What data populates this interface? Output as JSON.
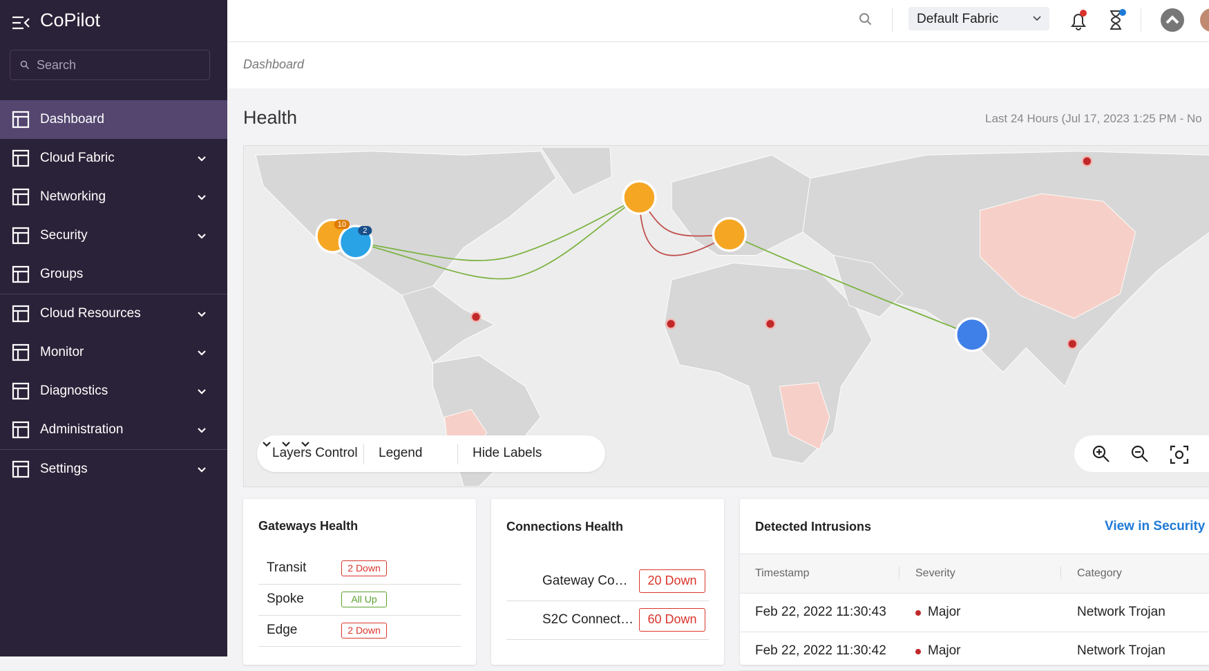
{
  "sidebar": {
    "brand": "CoPilot",
    "search_placeholder": "Search",
    "sections": [
      [
        {
          "label": "Dashboard",
          "active": true,
          "expandable": false
        },
        {
          "label": "Cloud Fabric",
          "active": false,
          "expandable": true
        },
        {
          "label": "Networking",
          "active": false,
          "expandable": true
        },
        {
          "label": "Security",
          "active": false,
          "expandable": true
        },
        {
          "label": "Groups",
          "active": false,
          "expandable": false
        }
      ],
      [
        {
          "label": "Cloud Resources",
          "active": false,
          "expandable": true
        },
        {
          "label": "Monitor",
          "active": false,
          "expandable": true
        },
        {
          "label": "Diagnostics",
          "active": false,
          "expandable": true
        },
        {
          "label": "Administration",
          "active": false,
          "expandable": true
        }
      ],
      [
        {
          "label": "Settings",
          "active": false,
          "expandable": true
        }
      ]
    ]
  },
  "topbar": {
    "fabric": "Default Fabric"
  },
  "breadcrumb": "Dashboard",
  "health": {
    "title": "Health",
    "time_range": "Last 24 Hours (Jul 17, 2023 1:25 PM - No",
    "map": {
      "badges": [
        "10",
        "2"
      ],
      "controls": [
        "Layers Control",
        "Legend",
        "Hide Labels"
      ]
    }
  },
  "gateways_health": {
    "title": "Gateways Health",
    "rows": [
      {
        "name": "Transit",
        "status": "2 Down",
        "color": "#d9342b"
      },
      {
        "name": "Spoke",
        "status": "All Up",
        "color": "#5aa02c"
      },
      {
        "name": "Edge",
        "status": "2 Down",
        "color": "#d9342b"
      }
    ]
  },
  "connections_health": {
    "title": "Connections Health",
    "rows": [
      {
        "name": "Gateway Co…",
        "status": "20 Down",
        "color": "#d9342b"
      },
      {
        "name": "S2C Connect…",
        "status": "60 Down",
        "color": "#d9342b"
      }
    ]
  },
  "detected_intrusions": {
    "title": "Detected Intrusions",
    "link": "View in Security",
    "columns": [
      "Timestamp",
      "Severity",
      "Category"
    ],
    "rows": [
      [
        "Feb 22, 2022 11:30:43",
        "Major",
        "Network Trojan"
      ],
      [
        "Feb 22, 2022 11:30:42",
        "Major",
        "Network Trojan"
      ]
    ],
    "severity_color": "#c0282a"
  }
}
